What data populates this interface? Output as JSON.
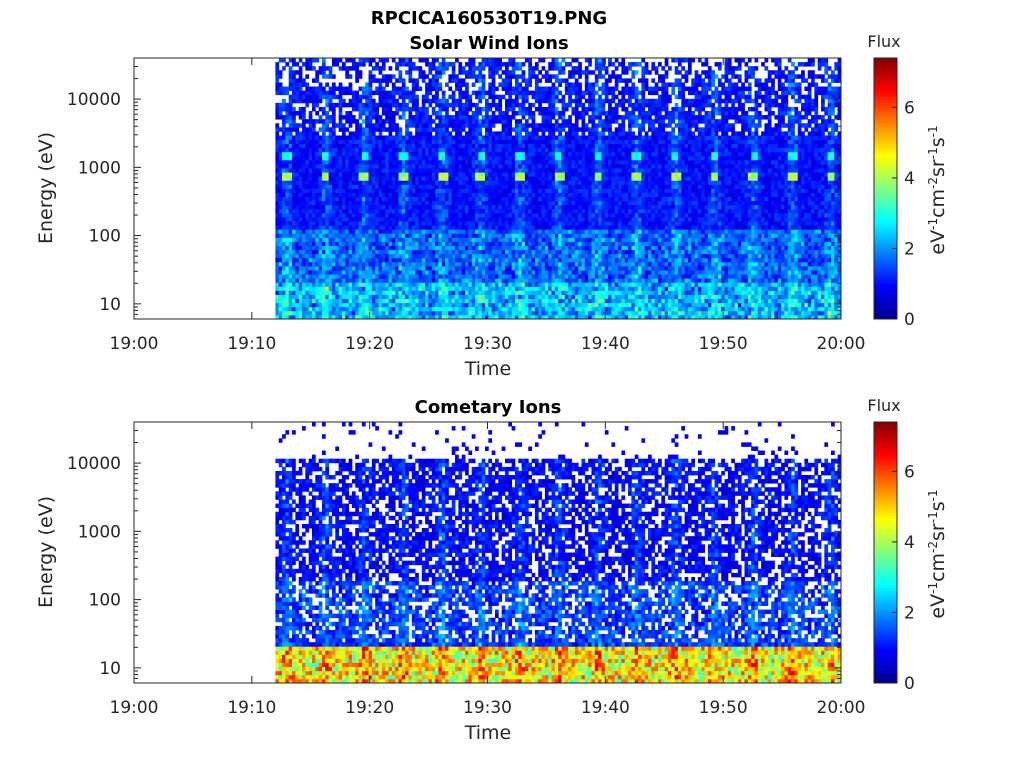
{
  "figure": {
    "title": "RPCICA160530T19.PNG"
  },
  "chart_data": [
    {
      "type": "heatmap",
      "title": "Solar Wind Ions",
      "xlabel": "Time",
      "ylabel": "Energy (eV)",
      "x_ticks": [
        "19:00",
        "19:10",
        "19:20",
        "19:30",
        "19:40",
        "19:50",
        "20:00"
      ],
      "x_range": [
        "19:00",
        "20:00"
      ],
      "y_scale": "log",
      "y_ticks": [
        10,
        100,
        1000,
        10000
      ],
      "y_tick_labels": [
        "10",
        "100",
        "1000",
        "10000"
      ],
      "ylim": [
        6,
        40000
      ],
      "data_start": "19:12",
      "data_end": "20:00",
      "energy_cutoff": 40000,
      "colorbar": {
        "title": "Flux",
        "label": "eV-1cm-2sr-1s-1",
        "range": [
          0,
          7.4
        ],
        "ticks": [
          0,
          2,
          4,
          6
        ],
        "colormap": "jet"
      },
      "features": [
        "Periodic sweeps (~3.3 min) of elevated flux",
        "Solar wind proton peak near 700 eV (flux ~4)",
        "Weaker peak near 1500 eV",
        "Elevated flux at lowest energies (~10 eV)"
      ]
    },
    {
      "type": "heatmap",
      "title": "Cometary Ions",
      "xlabel": "Time",
      "ylabel": "Energy (eV)",
      "x_ticks": [
        "19:00",
        "19:10",
        "19:20",
        "19:30",
        "19:40",
        "19:50",
        "20:00"
      ],
      "x_range": [
        "19:00",
        "20:00"
      ],
      "y_scale": "log",
      "y_ticks": [
        10,
        100,
        1000,
        10000
      ],
      "y_tick_labels": [
        "10",
        "100",
        "1000",
        "10000"
      ],
      "ylim": [
        6,
        40000
      ],
      "data_start": "19:12",
      "data_end": "20:00",
      "energy_cutoff": 11000,
      "colorbar": {
        "title": "Flux",
        "label": "eV-1cm-2sr-1s-1",
        "range": [
          0,
          7.4
        ],
        "ticks": [
          0,
          2,
          4,
          6
        ],
        "colormap": "jet"
      },
      "features": [
        "Sparse low flux above 11000 eV",
        "High flux (5-7) at energies below 20 eV",
        "Periodic sweeps (~3.3 min)"
      ]
    }
  ]
}
